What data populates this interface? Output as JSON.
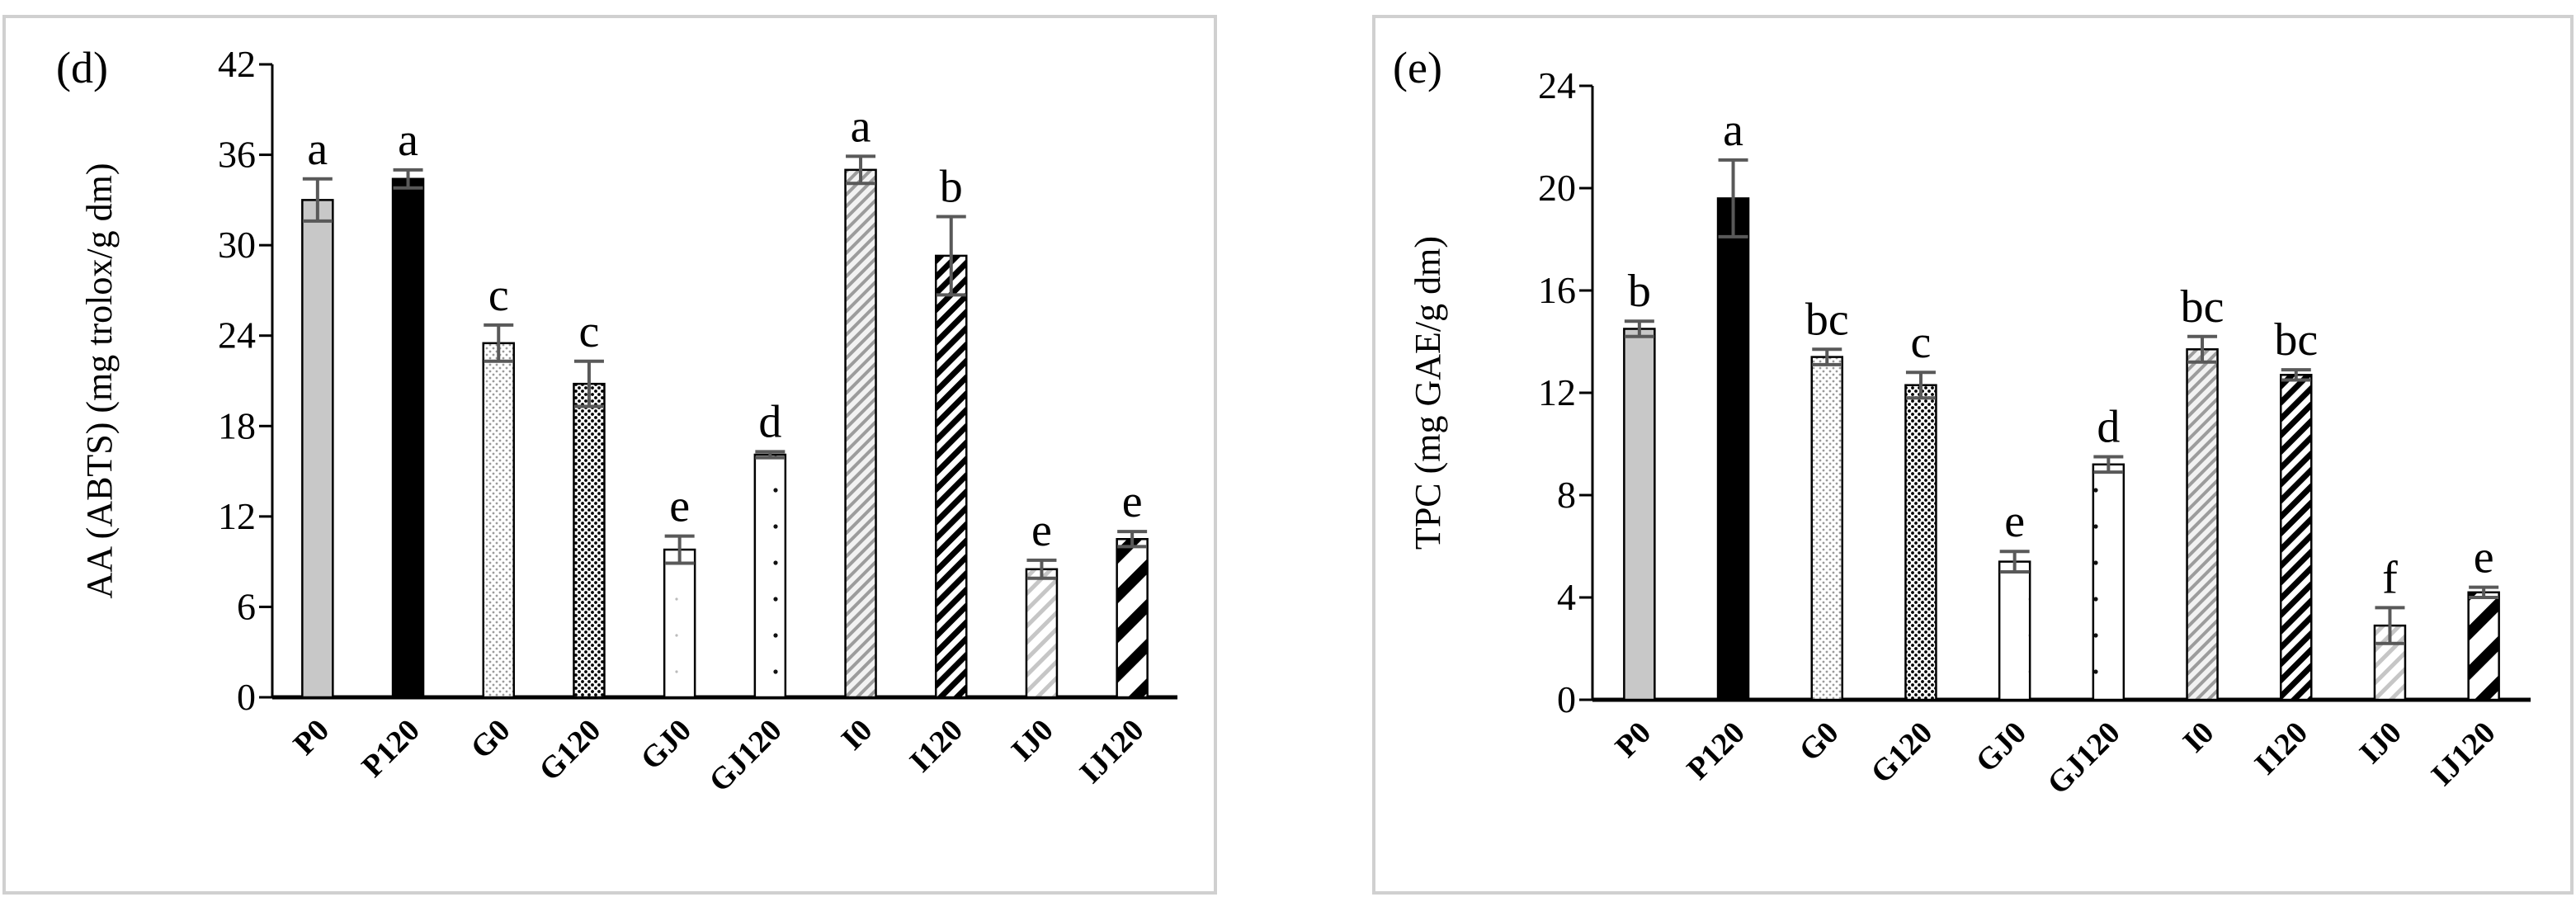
{
  "chart_data": [
    {
      "type": "bar",
      "panel_label": "(d)",
      "title": "",
      "xlabel": "",
      "ylabel": "AA (ABTS) (mg trolox/g dm)",
      "ylim": [
        0,
        42
      ],
      "yticks": [
        0,
        6,
        12,
        18,
        24,
        30,
        36,
        42
      ],
      "grid": false,
      "legend": "none",
      "categories": [
        "P0",
        "P120",
        "G0",
        "G120",
        "GJ0",
        "GJ120",
        "I0",
        "I120",
        "IJ0",
        "IJ120"
      ],
      "values": [
        33.0,
        34.4,
        23.5,
        20.8,
        9.8,
        16.1,
        35.0,
        29.3,
        8.5,
        10.5
      ],
      "errors": [
        1.4,
        0.6,
        1.2,
        1.5,
        0.9,
        0.2,
        0.9,
        2.6,
        0.6,
        0.5
      ],
      "letters": [
        "a",
        "a",
        "c",
        "c",
        "e",
        "d",
        "a",
        "b",
        "e",
        "e"
      ],
      "patterns": [
        "gray",
        "black",
        "fine-dots",
        "dense-dots",
        "sparse-dots-white",
        "sparse-dots",
        "gray-diagonal",
        "bold-diagonal",
        "light-diagonal",
        "wide-diagonal"
      ]
    },
    {
      "type": "bar",
      "panel_label": "(e)",
      "title": "",
      "xlabel": "",
      "ylabel": "TPC (mg GAE/g dm)",
      "ylim": [
        0,
        24
      ],
      "yticks": [
        0,
        4,
        8,
        12,
        16,
        20,
        24
      ],
      "grid": false,
      "legend": "none",
      "categories": [
        "P0",
        "P120",
        "G0",
        "G120",
        "GJ0",
        "GJ120",
        "I0",
        "I120",
        "IJ0",
        "IJ120"
      ],
      "values": [
        14.5,
        19.6,
        13.4,
        12.3,
        5.4,
        9.2,
        13.7,
        12.7,
        2.9,
        4.2
      ],
      "errors": [
        0.3,
        1.5,
        0.3,
        0.5,
        0.4,
        0.3,
        0.5,
        0.2,
        0.7,
        0.2
      ],
      "letters": [
        "b",
        "a",
        "bc",
        "c",
        "e",
        "d",
        "bc",
        "bc",
        "f",
        "e"
      ],
      "patterns": [
        "gray",
        "black",
        "fine-dots",
        "dense-dots",
        "sparse-dots-white",
        "sparse-dots",
        "gray-diagonal",
        "bold-diagonal",
        "light-diagonal",
        "wide-diagonal"
      ]
    }
  ]
}
